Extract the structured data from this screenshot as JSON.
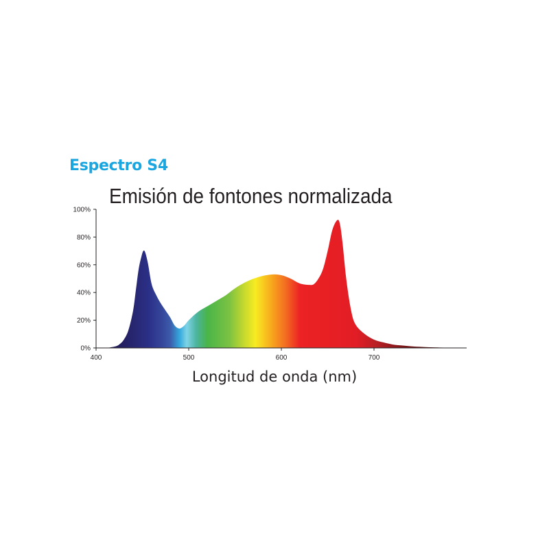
{
  "brand": {
    "label": "Espectro S4",
    "color": "#1ba6e0"
  },
  "chart_data": {
    "type": "area",
    "title": "Emisión de fontones normalizada",
    "xlabel": "Longitud de onda (nm)",
    "ylabel": "",
    "xlim": [
      400,
      800
    ],
    "ylim": [
      0,
      100
    ],
    "x_ticks": [
      400,
      500,
      600,
      700
    ],
    "x_tick_labels": [
      "400",
      "500",
      "600",
      "700"
    ],
    "y_ticks": [
      0,
      20,
      40,
      60,
      80,
      100
    ],
    "y_tick_labels": [
      "0%",
      "20%",
      "40%",
      "60%",
      "80%",
      "100%"
    ],
    "grid": false,
    "legend": "none",
    "series": [
      {
        "x": [
          400,
          410,
          420,
          425,
          430,
          435,
          440,
          443,
          446,
          449,
          451,
          453,
          456,
          460,
          465,
          470,
          475,
          480,
          485,
          490,
          495,
          500,
          510,
          520,
          530,
          540,
          550,
          560,
          570,
          580,
          590,
          600,
          610,
          620,
          630,
          635,
          640,
          645,
          650,
          655,
          660,
          663,
          666,
          670,
          675,
          680,
          690,
          700,
          710,
          720,
          730,
          740,
          750,
          760,
          770,
          780,
          790,
          800
        ],
        "y": [
          0,
          0,
          1,
          2.5,
          6,
          13,
          27,
          42,
          57,
          66,
          70,
          69,
          61,
          46,
          38,
          32,
          27,
          22,
          16,
          14,
          16,
          20,
          26,
          30,
          34,
          38,
          43,
          47,
          50,
          52,
          53,
          52.5,
          50,
          46.5,
          45.5,
          46,
          50,
          57,
          70,
          85,
          92,
          90,
          76,
          50,
          28,
          17,
          10,
          6,
          4,
          2.5,
          1.8,
          1.2,
          0.8,
          0.5,
          0.3,
          0.2,
          0.1,
          0
        ]
      }
    ]
  }
}
